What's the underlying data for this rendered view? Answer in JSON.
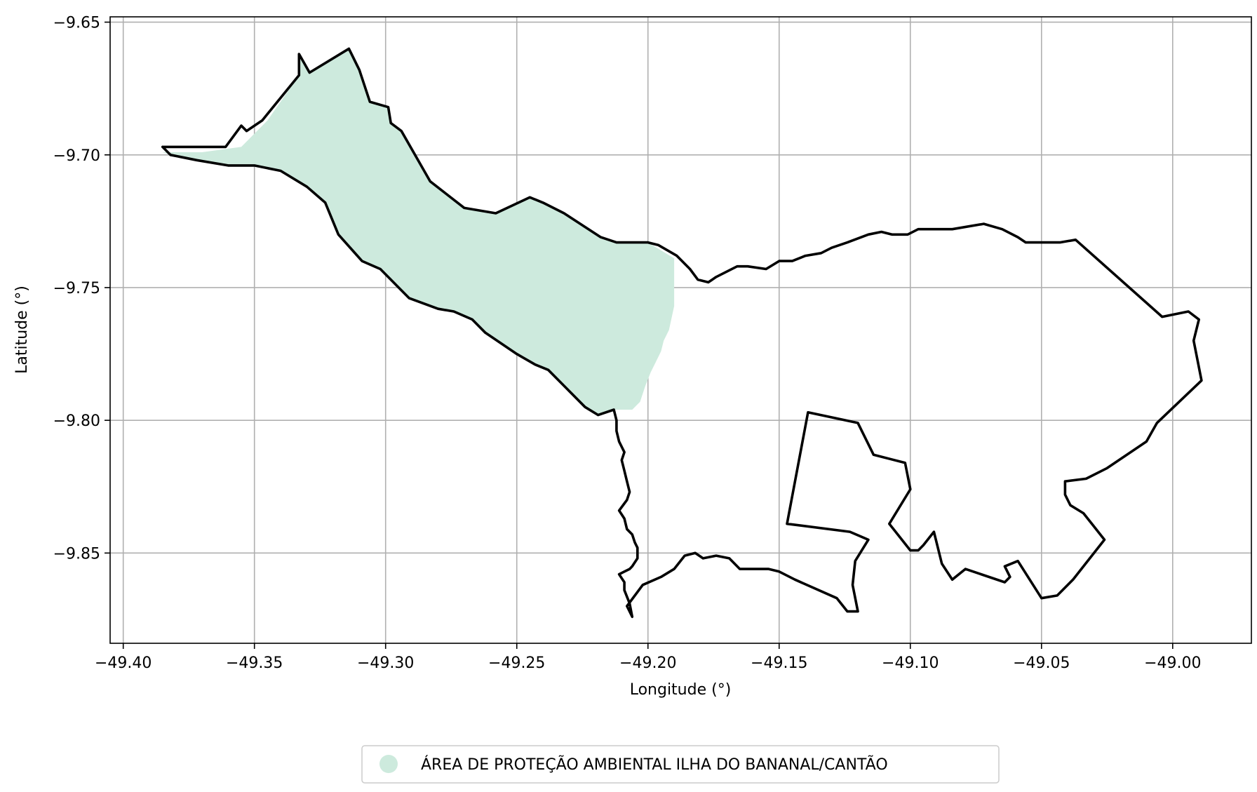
{
  "chart_data": {
    "type": "map",
    "xlabel": "Longitude (°)",
    "ylabel": "Latitude (°)",
    "xlim": [
      -49.405,
      -48.97
    ],
    "ylim": [
      -9.884,
      -9.648
    ],
    "grid": true,
    "legend_placement": "bottom-center",
    "x_ticks": [
      {
        "value": -49.4,
        "label": "−49.40"
      },
      {
        "value": -49.35,
        "label": "−49.35"
      },
      {
        "value": -49.3,
        "label": "−49.30"
      },
      {
        "value": -49.25,
        "label": "−49.25"
      },
      {
        "value": -49.2,
        "label": "−49.20"
      },
      {
        "value": -49.15,
        "label": "−49.15"
      },
      {
        "value": -49.1,
        "label": "−49.10"
      },
      {
        "value": -49.05,
        "label": "−49.05"
      },
      {
        "value": -49.0,
        "label": "−49.00"
      }
    ],
    "y_ticks": [
      {
        "value": -9.65,
        "label": "−9.65"
      },
      {
        "value": -9.7,
        "label": "−9.70"
      },
      {
        "value": -9.75,
        "label": "−9.75"
      },
      {
        "value": -9.8,
        "label": "−9.80"
      },
      {
        "value": -9.85,
        "label": "−9.85"
      }
    ],
    "legend": [
      {
        "label": "ÁREA DE PROTEÇÃO AMBIENTAL ILHA DO BANANAL/CANTÃO",
        "color": "#cdeadd"
      }
    ],
    "layers": [
      {
        "kind": "fill",
        "color": "#cdeadd",
        "coordinates": [
          [
            -49.385,
            -9.699
          ],
          [
            -49.37,
            -9.699
          ],
          [
            -49.355,
            -9.697
          ],
          [
            -49.345,
            -9.687
          ],
          [
            -49.333,
            -9.67
          ],
          [
            -49.333,
            -9.662
          ],
          [
            -49.329,
            -9.669
          ],
          [
            -49.314,
            -9.66
          ],
          [
            -49.31,
            -9.668
          ],
          [
            -49.306,
            -9.68
          ],
          [
            -49.299,
            -9.682
          ],
          [
            -49.298,
            -9.688
          ],
          [
            -49.294,
            -9.691
          ],
          [
            -49.283,
            -9.71
          ],
          [
            -49.27,
            -9.72
          ],
          [
            -49.258,
            -9.722
          ],
          [
            -49.245,
            -9.716
          ],
          [
            -49.24,
            -9.718
          ],
          [
            -49.232,
            -9.722
          ],
          [
            -49.218,
            -9.731
          ],
          [
            -49.212,
            -9.733
          ],
          [
            -49.2,
            -9.733
          ],
          [
            -49.19,
            -9.739
          ],
          [
            -49.19,
            -9.757
          ],
          [
            -49.192,
            -9.766
          ],
          [
            -49.194,
            -9.77
          ],
          [
            -49.195,
            -9.774
          ],
          [
            -49.197,
            -9.778
          ],
          [
            -49.199,
            -9.782
          ],
          [
            -49.201,
            -9.787
          ],
          [
            -49.203,
            -9.793
          ],
          [
            -49.206,
            -9.796
          ],
          [
            -49.21,
            -9.796
          ],
          [
            -49.214,
            -9.796
          ],
          [
            -49.219,
            -9.798
          ],
          [
            -49.224,
            -9.795
          ],
          [
            -49.232,
            -9.787
          ],
          [
            -49.238,
            -9.781
          ],
          [
            -49.243,
            -9.779
          ],
          [
            -49.25,
            -9.775
          ],
          [
            -49.262,
            -9.767
          ],
          [
            -49.267,
            -9.762
          ],
          [
            -49.274,
            -9.759
          ],
          [
            -49.28,
            -9.758
          ],
          [
            -49.291,
            -9.754
          ],
          [
            -49.302,
            -9.743
          ],
          [
            -49.309,
            -9.74
          ],
          [
            -49.318,
            -9.73
          ],
          [
            -49.323,
            -9.718
          ],
          [
            -49.33,
            -9.712
          ],
          [
            -49.34,
            -9.706
          ],
          [
            -49.35,
            -9.704
          ],
          [
            -49.36,
            -9.704
          ],
          [
            -49.372,
            -9.702
          ],
          [
            -49.382,
            -9.7
          ]
        ]
      },
      {
        "kind": "outline",
        "color": "#000000",
        "coordinates": [
          [
            -49.385,
            -9.697
          ],
          [
            -49.361,
            -9.697
          ],
          [
            -49.355,
            -9.689
          ],
          [
            -49.353,
            -9.691
          ],
          [
            -49.347,
            -9.687
          ],
          [
            -49.333,
            -9.67
          ],
          [
            -49.333,
            -9.662
          ],
          [
            -49.329,
            -9.669
          ],
          [
            -49.314,
            -9.66
          ],
          [
            -49.31,
            -9.668
          ],
          [
            -49.306,
            -9.68
          ],
          [
            -49.299,
            -9.682
          ],
          [
            -49.298,
            -9.688
          ],
          [
            -49.294,
            -9.691
          ],
          [
            -49.283,
            -9.71
          ],
          [
            -49.27,
            -9.72
          ],
          [
            -49.258,
            -9.722
          ],
          [
            -49.245,
            -9.716
          ],
          [
            -49.24,
            -9.718
          ],
          [
            -49.232,
            -9.722
          ],
          [
            -49.218,
            -9.731
          ],
          [
            -49.212,
            -9.733
          ],
          [
            -49.2,
            -9.733
          ],
          [
            -49.196,
            -9.734
          ],
          [
            -49.189,
            -9.738
          ],
          [
            -49.184,
            -9.743
          ],
          [
            -49.181,
            -9.747
          ],
          [
            -49.177,
            -9.748
          ],
          [
            -49.174,
            -9.746
          ],
          [
            -49.166,
            -9.742
          ],
          [
            -49.162,
            -9.742
          ],
          [
            -49.155,
            -9.743
          ],
          [
            -49.15,
            -9.74
          ],
          [
            -49.145,
            -9.74
          ],
          [
            -49.14,
            -9.738
          ],
          [
            -49.134,
            -9.737
          ],
          [
            -49.13,
            -9.735
          ],
          [
            -49.124,
            -9.733
          ],
          [
            -49.116,
            -9.73
          ],
          [
            -49.111,
            -9.729
          ],
          [
            -49.107,
            -9.73
          ],
          [
            -49.101,
            -9.73
          ],
          [
            -49.097,
            -9.728
          ],
          [
            -49.084,
            -9.728
          ],
          [
            -49.072,
            -9.726
          ],
          [
            -49.065,
            -9.728
          ],
          [
            -49.059,
            -9.731
          ],
          [
            -49.056,
            -9.733
          ],
          [
            -49.043,
            -9.733
          ],
          [
            -49.037,
            -9.732
          ],
          [
            -49.004,
            -9.761
          ],
          [
            -48.994,
            -9.759
          ],
          [
            -48.99,
            -9.762
          ],
          [
            -48.992,
            -9.77
          ],
          [
            -48.989,
            -9.785
          ],
          [
            -49.006,
            -9.801
          ],
          [
            -49.01,
            -9.808
          ],
          [
            -49.025,
            -9.818
          ],
          [
            -49.033,
            -9.822
          ],
          [
            -49.041,
            -9.823
          ],
          [
            -49.041,
            -9.828
          ],
          [
            -49.039,
            -9.832
          ],
          [
            -49.034,
            -9.835
          ],
          [
            -49.03,
            -9.84
          ],
          [
            -49.026,
            -9.845
          ],
          [
            -49.038,
            -9.86
          ],
          [
            -49.044,
            -9.866
          ],
          [
            -49.05,
            -9.867
          ],
          [
            -49.059,
            -9.853
          ],
          [
            -49.064,
            -9.855
          ],
          [
            -49.062,
            -9.859
          ],
          [
            -49.064,
            -9.861
          ],
          [
            -49.079,
            -9.856
          ],
          [
            -49.084,
            -9.86
          ],
          [
            -49.088,
            -9.854
          ],
          [
            -49.091,
            -9.842
          ],
          [
            -49.095,
            -9.847
          ],
          [
            -49.097,
            -9.849
          ],
          [
            -49.1,
            -9.849
          ],
          [
            -49.108,
            -9.839
          ],
          [
            -49.1,
            -9.826
          ],
          [
            -49.102,
            -9.816
          ],
          [
            -49.114,
            -9.813
          ],
          [
            -49.12,
            -9.801
          ],
          [
            -49.139,
            -9.797
          ],
          [
            -49.147,
            -9.839
          ],
          [
            -49.123,
            -9.842
          ],
          [
            -49.116,
            -9.845
          ],
          [
            -49.121,
            -9.853
          ],
          [
            -49.122,
            -9.862
          ],
          [
            -49.12,
            -9.872
          ],
          [
            -49.124,
            -9.872
          ],
          [
            -49.128,
            -9.867
          ],
          [
            -49.144,
            -9.86
          ],
          [
            -49.15,
            -9.857
          ],
          [
            -49.154,
            -9.856
          ],
          [
            -49.158,
            -9.856
          ],
          [
            -49.165,
            -9.856
          ],
          [
            -49.169,
            -9.852
          ],
          [
            -49.174,
            -9.851
          ],
          [
            -49.179,
            -9.852
          ],
          [
            -49.182,
            -9.85
          ],
          [
            -49.186,
            -9.851
          ],
          [
            -49.19,
            -9.856
          ],
          [
            -49.195,
            -9.859
          ],
          [
            -49.202,
            -9.862
          ],
          [
            -49.208,
            -9.87
          ],
          [
            -49.206,
            -9.874
          ],
          [
            -49.207,
            -9.869
          ],
          [
            -49.209,
            -9.864
          ],
          [
            -49.209,
            -9.861
          ],
          [
            -49.211,
            -9.858
          ],
          [
            -49.207,
            -9.856
          ],
          [
            -49.206,
            -9.855
          ],
          [
            -49.204,
            -9.852
          ],
          [
            -49.204,
            -9.848
          ],
          [
            -49.205,
            -9.846
          ],
          [
            -49.206,
            -9.843
          ],
          [
            -49.208,
            -9.841
          ],
          [
            -49.209,
            -9.837
          ],
          [
            -49.211,
            -9.834
          ],
          [
            -49.208,
            -9.83
          ],
          [
            -49.207,
            -9.827
          ],
          [
            -49.208,
            -9.823
          ],
          [
            -49.209,
            -9.819
          ],
          [
            -49.21,
            -9.815
          ],
          [
            -49.209,
            -9.812
          ],
          [
            -49.211,
            -9.808
          ],
          [
            -49.212,
            -9.804
          ],
          [
            -49.212,
            -9.8
          ],
          [
            -49.213,
            -9.796
          ],
          [
            -49.219,
            -9.798
          ],
          [
            -49.224,
            -9.795
          ],
          [
            -49.232,
            -9.787
          ],
          [
            -49.238,
            -9.781
          ],
          [
            -49.243,
            -9.779
          ],
          [
            -49.25,
            -9.775
          ],
          [
            -49.262,
            -9.767
          ],
          [
            -49.267,
            -9.762
          ],
          [
            -49.274,
            -9.759
          ],
          [
            -49.28,
            -9.758
          ],
          [
            -49.291,
            -9.754
          ],
          [
            -49.302,
            -9.743
          ],
          [
            -49.309,
            -9.74
          ],
          [
            -49.318,
            -9.73
          ],
          [
            -49.323,
            -9.718
          ],
          [
            -49.33,
            -9.712
          ],
          [
            -49.34,
            -9.706
          ],
          [
            -49.35,
            -9.704
          ],
          [
            -49.36,
            -9.704
          ],
          [
            -49.372,
            -9.702
          ],
          [
            -49.382,
            -9.7
          ],
          [
            -49.385,
            -9.697
          ]
        ]
      }
    ]
  }
}
